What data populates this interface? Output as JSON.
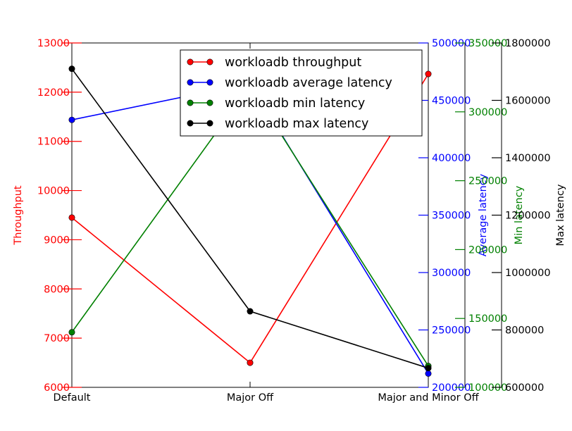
{
  "chart_data": {
    "type": "line",
    "categories": [
      "Default",
      "Major Off",
      "Major and Minor Off"
    ],
    "series": [
      {
        "name": "workloadb throughput",
        "axis": "throughput",
        "color": "#ff0000",
        "values": [
          9450,
          6500,
          12370
        ]
      },
      {
        "name": "workloadb average latency",
        "axis": "average",
        "color": "#0000ff",
        "values": [
          433000,
          465000,
          212000
        ]
      },
      {
        "name": "workloadb min latency",
        "axis": "min",
        "color": "#008000",
        "values": [
          140000,
          319000,
          115500
        ]
      },
      {
        "name": "workloadb max latency",
        "axis": "max",
        "color": "#000000",
        "values": [
          1710000,
          865000,
          667000
        ]
      }
    ],
    "axes": [
      {
        "id": "throughput",
        "label": "Throughput",
        "color": "#ff0000",
        "range": [
          6000,
          13000
        ],
        "ticks": [
          6000,
          7000,
          8000,
          9000,
          10000,
          11000,
          12000,
          13000
        ],
        "tick_labels": [
          "6000",
          "7000",
          "8000",
          "9000",
          "10000",
          "11000",
          "12000",
          "13000"
        ]
      },
      {
        "id": "average",
        "label": "Average latency",
        "color": "#0000ff",
        "range": [
          200000,
          500000
        ],
        "ticks": [
          200000,
          250000,
          300000,
          350000,
          400000,
          450000,
          500000
        ],
        "tick_labels": [
          "200000",
          "250000",
          "300000",
          "350000",
          "400000",
          "450000",
          "500000"
        ]
      },
      {
        "id": "min",
        "label": "Min latency",
        "color": "#008000",
        "range": [
          100000,
          350000
        ],
        "ticks": [
          100000,
          150000,
          200000,
          250000,
          300000,
          350000
        ],
        "tick_labels": [
          "100000",
          "150000",
          "200000",
          "250000",
          "300000",
          "350000"
        ]
      },
      {
        "id": "max",
        "label": "Max latency",
        "color": "#000000",
        "range": [
          600000,
          1800000
        ],
        "ticks": [
          600000,
          800000,
          1000000,
          1200000,
          1400000,
          1600000,
          1800000
        ],
        "tick_labels": [
          "600000",
          "800000",
          "1000000",
          "1200000",
          "1400000",
          "1600000",
          "1800000"
        ]
      }
    ],
    "legend_placement": "top-right",
    "grid": false
  }
}
